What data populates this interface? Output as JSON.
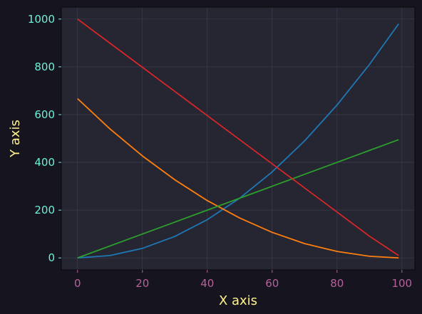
{
  "chart_data": {
    "type": "line",
    "title": "",
    "xlabel": "X axis",
    "ylabel": "Y axis",
    "xlim": [
      -5,
      104
    ],
    "ylim": [
      -50,
      1050
    ],
    "x_ticks": [
      0,
      20,
      40,
      60,
      80,
      100
    ],
    "y_ticks": [
      0,
      200,
      400,
      600,
      800,
      1000
    ],
    "grid": true,
    "legend": "none",
    "x_range": [
      0,
      99
    ],
    "series": [
      {
        "color": "#1f77b4",
        "x": [
          0,
          10,
          20,
          30,
          40,
          50,
          60,
          70,
          80,
          90,
          99
        ],
        "y": [
          0,
          10,
          40,
          90,
          160,
          250,
          360,
          490,
          640,
          810,
          980
        ]
      },
      {
        "color": "#ff7f0e",
        "x": [
          0,
          10,
          20,
          30,
          40,
          50,
          60,
          70,
          80,
          90,
          99
        ],
        "y": [
          667,
          540,
          427,
          327,
          240,
          167,
          107,
          60,
          27,
          7,
          0
        ]
      },
      {
        "color": "#2ca02c",
        "x": [
          0,
          10,
          20,
          30,
          40,
          50,
          60,
          70,
          80,
          90,
          99
        ],
        "y": [
          0,
          50,
          100,
          150,
          200,
          250,
          300,
          350,
          400,
          450,
          495
        ]
      },
      {
        "color": "#d62728",
        "x": [
          0,
          10,
          20,
          30,
          40,
          50,
          60,
          70,
          80,
          90,
          99
        ],
        "y": [
          1000,
          899,
          798,
          697,
          596,
          495,
          394,
          293,
          192,
          91,
          10
        ]
      }
    ]
  },
  "colors": {
    "background": "#16151f",
    "plot_area": "#262532",
    "x_tick_label": "#b5629a",
    "y_tick_label": "#6ef0d8",
    "axis_title": "#fff38a",
    "grid": "#3a394a"
  }
}
